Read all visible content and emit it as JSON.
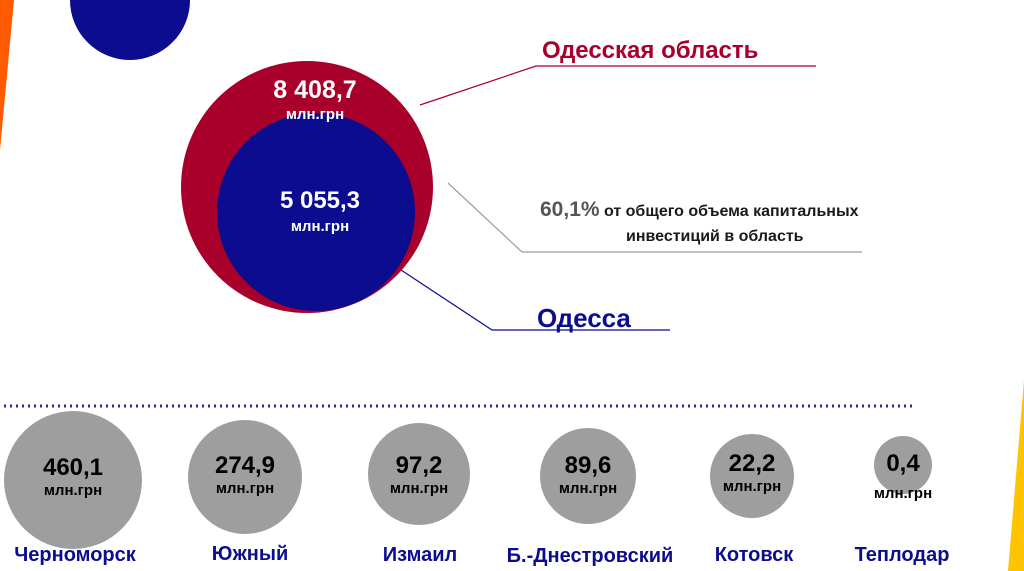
{
  "region": {
    "name": "Одесская область",
    "value": "8 408,7",
    "unit": "млн.грн"
  },
  "city_main": {
    "name": "Одесса",
    "value": "5 055,3",
    "unit": "млн.грн"
  },
  "share": {
    "percent": "60,1%",
    "text_line1": "от общего объема капитальных",
    "text_line2": "инвестиций в область"
  },
  "cities": [
    {
      "name": "Черноморск",
      "value": "460,1",
      "unit": "млн.грн"
    },
    {
      "name": "Южный",
      "value": "274,9",
      "unit": "млн.грн"
    },
    {
      "name": "Измаил",
      "value": "97,2",
      "unit": "млн.грн"
    },
    {
      "name": "Б.-Днестровский",
      "value": "89,6",
      "unit": "млн.грн"
    },
    {
      "name": "Котовск",
      "value": "22,2",
      "unit": "млн.грн"
    },
    {
      "name": "Теплодар",
      "value": "0,4",
      "unit": "млн.грн"
    }
  ],
  "colors": {
    "region": "#a8002a",
    "city": "#0c0c8e",
    "bubble": "#9e9e9e",
    "accent_left": "#ff5a00",
    "accent_right": "#ffc400"
  }
}
